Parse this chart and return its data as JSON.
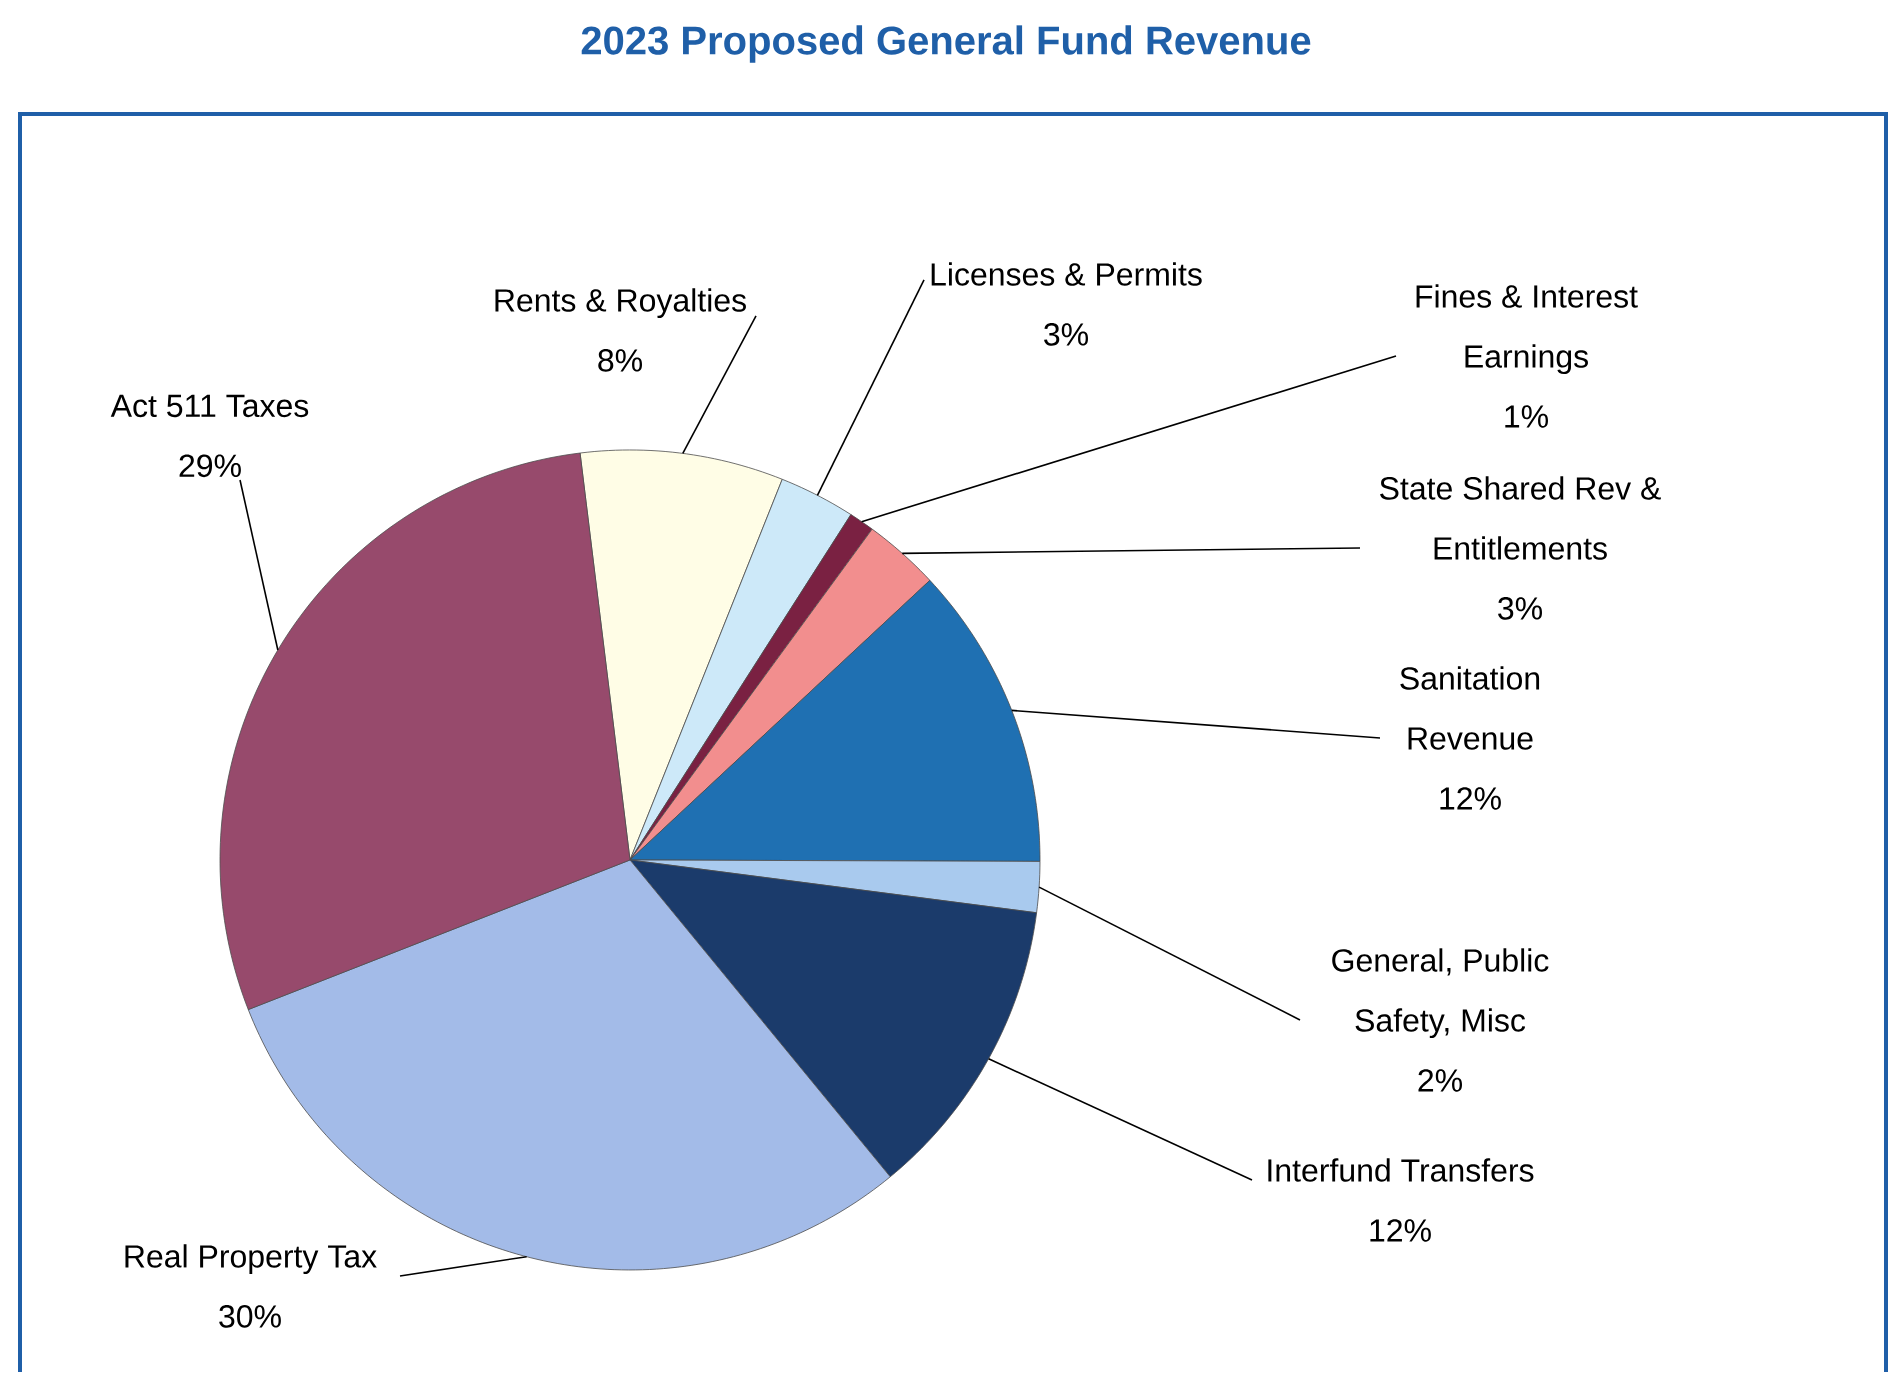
{
  "chart_data": {
    "type": "pie",
    "title": "2023 Proposed General Fund Revenue",
    "categories": [
      "Rents & Royalties",
      "Licenses & Permits",
      "Fines & Interest Earnings",
      "State Shared Rev & Entitlements",
      "Sanitation Revenue",
      "General, Public Safety, Misc",
      "Interfund Transfers",
      "Real Property Tax",
      "Act 511 Taxes"
    ],
    "values": [
      8,
      3,
      1,
      3,
      12,
      2,
      12,
      30,
      29
    ],
    "value_labels": [
      "8%",
      "3%",
      "1%",
      "3%",
      "12%",
      "2%",
      "12%",
      "30%",
      "29%"
    ],
    "colors": [
      "#fffde6",
      "#cde9f9",
      "#7a2142",
      "#f28e8e",
      "#1f70b2",
      "#a9caee",
      "#1b3b6b",
      "#a3bbe8",
      "#974a6c"
    ]
  }
}
